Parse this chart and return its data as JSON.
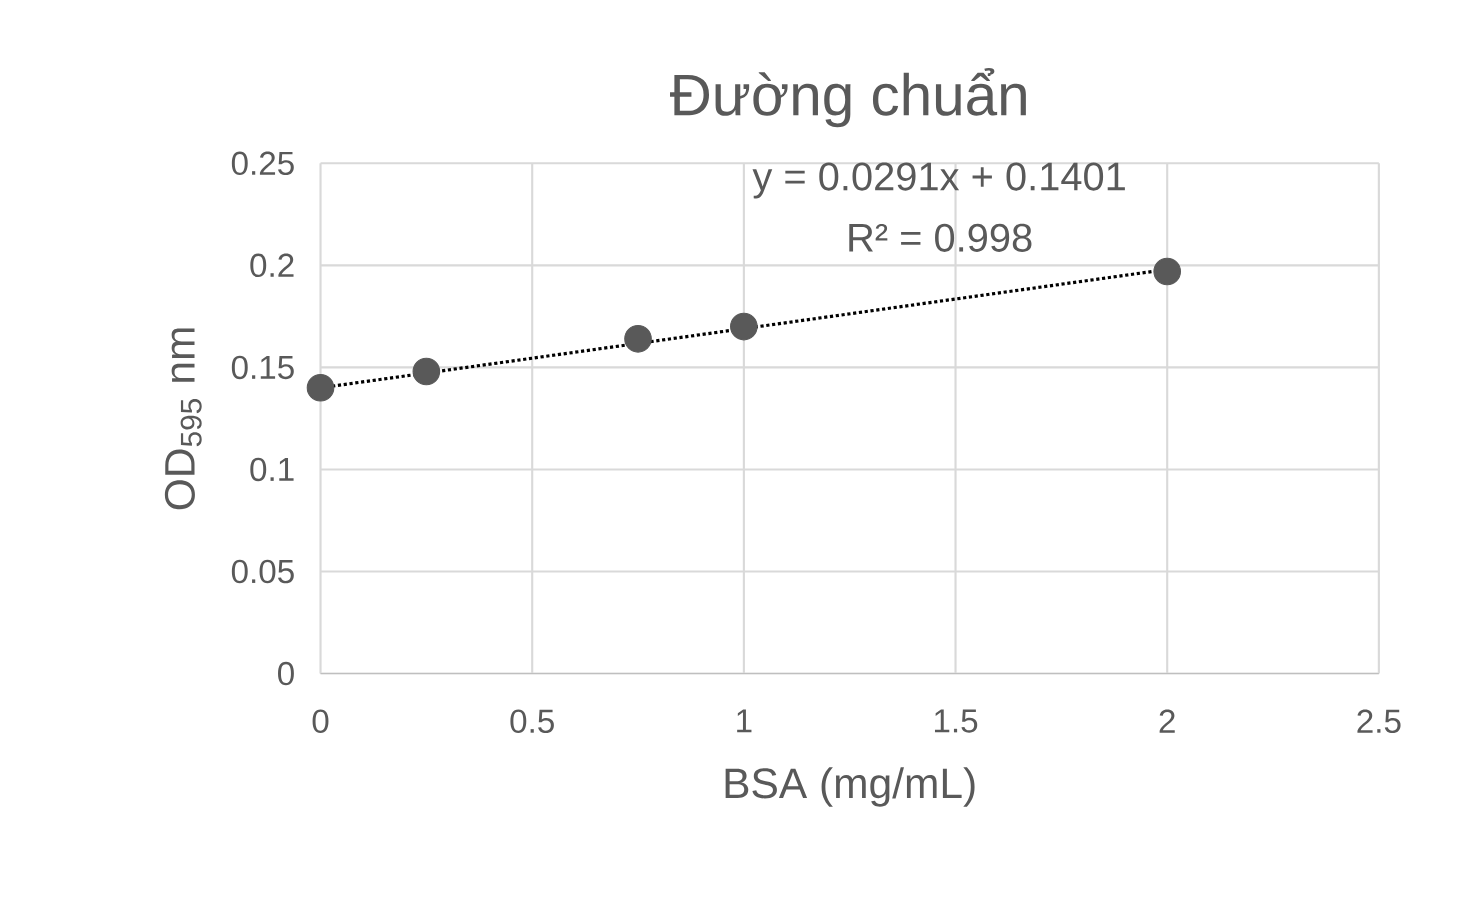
{
  "chart_data": {
    "type": "scatter",
    "title": "Đường chuẩn",
    "xlabel": "BSA (mg/mL)",
    "ylabel": "OD$_{595}$ nm",
    "xlim": [
      0,
      2.5
    ],
    "xticks": [
      0,
      0.5,
      1,
      1.5,
      2,
      2.5
    ],
    "ylim": [
      0,
      0.25
    ],
    "yticks": [
      0,
      0.05,
      0.1,
      0.15,
      0.2,
      0.25
    ],
    "grid": true,
    "annotations": [
      "y = 0.0291x + 0.1401",
      "R² = 0.998"
    ],
    "series": [
      {
        "color": "#595959",
        "marker": "circle",
        "x": [
          0,
          0.25,
          0.75,
          1,
          2
        ],
        "values": [
          0.14,
          0.148,
          0.164,
          0.17,
          0.197
        ]
      },
      {
        "type": "line",
        "color": "#000000",
        "line_style": "dotted",
        "marker": "none",
        "x": [
          0,
          2
        ],
        "values": [
          0.14,
          0.198
        ]
      }
    ]
  }
}
